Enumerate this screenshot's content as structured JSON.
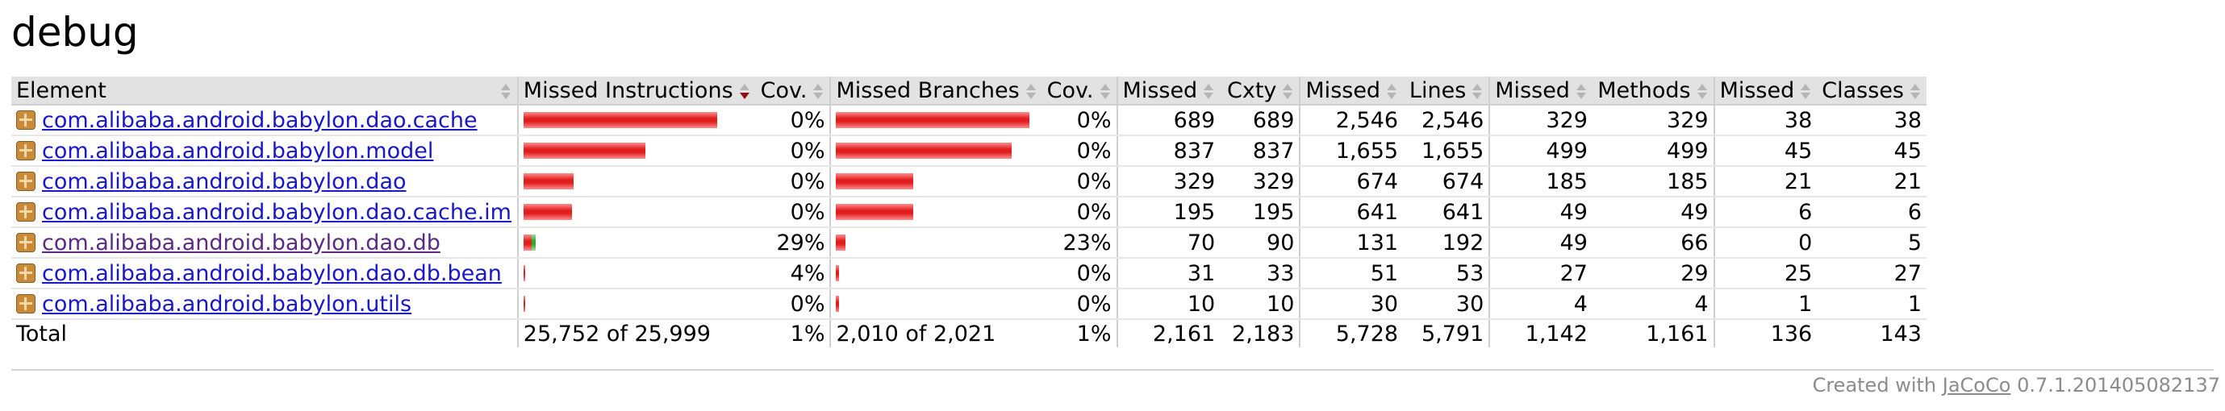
{
  "title": "debug",
  "header": {
    "element": "Element",
    "missed_instructions": "Missed Instructions",
    "cov1": "Cov.",
    "missed_branches": "Missed Branches",
    "cov2": "Cov.",
    "missed_cxty": "Missed",
    "cxty": "Cxty",
    "missed_lines": "Missed",
    "lines": "Lines",
    "missed_methods": "Missed",
    "methods": "Methods",
    "missed_classes": "Missed",
    "classes": "Classes"
  },
  "rows": [
    {
      "name": "com.alibaba.android.babylon.dao.cache",
      "instr_cov": "0%",
      "branch_cov": "0%",
      "missed_cxty": "689",
      "cxty": "689",
      "missed_lines": "2,546",
      "lines": "2,546",
      "missed_methods": "329",
      "methods": "329",
      "missed_classes": "38",
      "classes": "38",
      "instr_missed_frac": 1.0,
      "instr_covered_frac": 0.0,
      "branch_missed_frac": 1.0,
      "branch_covered_frac": 0.0
    },
    {
      "name": "com.alibaba.android.babylon.model",
      "instr_cov": "0%",
      "branch_cov": "0%",
      "missed_cxty": "837",
      "cxty": "837",
      "missed_lines": "1,655",
      "lines": "1,655",
      "missed_methods": "499",
      "methods": "499",
      "missed_classes": "45",
      "classes": "45",
      "instr_missed_frac": 0.63,
      "instr_covered_frac": 0.0,
      "branch_missed_frac": 0.91,
      "branch_covered_frac": 0.0
    },
    {
      "name": "com.alibaba.android.babylon.dao",
      "instr_cov": "0%",
      "branch_cov": "0%",
      "missed_cxty": "329",
      "cxty": "329",
      "missed_lines": "674",
      "lines": "674",
      "missed_methods": "185",
      "methods": "185",
      "missed_classes": "21",
      "classes": "21",
      "instr_missed_frac": 0.26,
      "instr_covered_frac": 0.0,
      "branch_missed_frac": 0.4,
      "branch_covered_frac": 0.0
    },
    {
      "name": "com.alibaba.android.babylon.dao.cache.im",
      "instr_cov": "0%",
      "branch_cov": "0%",
      "missed_cxty": "195",
      "cxty": "195",
      "missed_lines": "641",
      "lines": "641",
      "missed_methods": "49",
      "methods": "49",
      "missed_classes": "6",
      "classes": "6",
      "instr_missed_frac": 0.25,
      "instr_covered_frac": 0.0,
      "branch_missed_frac": 0.4,
      "branch_covered_frac": 0.0
    },
    {
      "name": "com.alibaba.android.babylon.dao.db",
      "instr_cov": "29%",
      "branch_cov": "23%",
      "missed_cxty": "70",
      "cxty": "90",
      "missed_lines": "131",
      "lines": "192",
      "missed_methods": "49",
      "methods": "66",
      "missed_classes": "0",
      "classes": "5",
      "visited": true,
      "instr_missed_frac": 0.04,
      "instr_covered_frac": 0.02,
      "branch_missed_frac": 0.05,
      "branch_covered_frac": 0.0
    },
    {
      "name": "com.alibaba.android.babylon.dao.db.bean",
      "instr_cov": "4%",
      "branch_cov": "0%",
      "missed_cxty": "31",
      "cxty": "33",
      "missed_lines": "51",
      "lines": "53",
      "missed_methods": "27",
      "methods": "29",
      "missed_classes": "25",
      "classes": "27",
      "instr_missed_frac": 0.01,
      "instr_covered_frac": 0.0,
      "branch_missed_frac": 0.015,
      "branch_covered_frac": 0.0
    },
    {
      "name": "com.alibaba.android.babylon.utils",
      "instr_cov": "0%",
      "branch_cov": "0%",
      "missed_cxty": "10",
      "cxty": "10",
      "missed_lines": "30",
      "lines": "30",
      "missed_methods": "4",
      "methods": "4",
      "missed_classes": "1",
      "classes": "1",
      "instr_missed_frac": 0.008,
      "instr_covered_frac": 0.0,
      "branch_missed_frac": 0.015,
      "branch_covered_frac": 0.0
    }
  ],
  "total": {
    "label": "Total",
    "instr": "25,752 of 25,999",
    "instr_cov": "1%",
    "branch": "2,010 of 2,021",
    "branch_cov": "1%",
    "missed_cxty": "2,161",
    "cxty": "2,183",
    "missed_lines": "5,728",
    "lines": "5,791",
    "missed_methods": "1,142",
    "methods": "1,161",
    "missed_classes": "136",
    "classes": "143"
  },
  "footer": {
    "prefix": "Created with",
    "link": "JaCoCo",
    "version": "0.7.1.201405082137"
  },
  "icons": {
    "row_icon": "package-icon",
    "sort": "sort-arrows-icon"
  },
  "colors": {
    "missed_bar": "#e01e1e",
    "covered_bar": "#29a829",
    "link": "#1a17c9",
    "header_bg": "#e2e2e2"
  }
}
